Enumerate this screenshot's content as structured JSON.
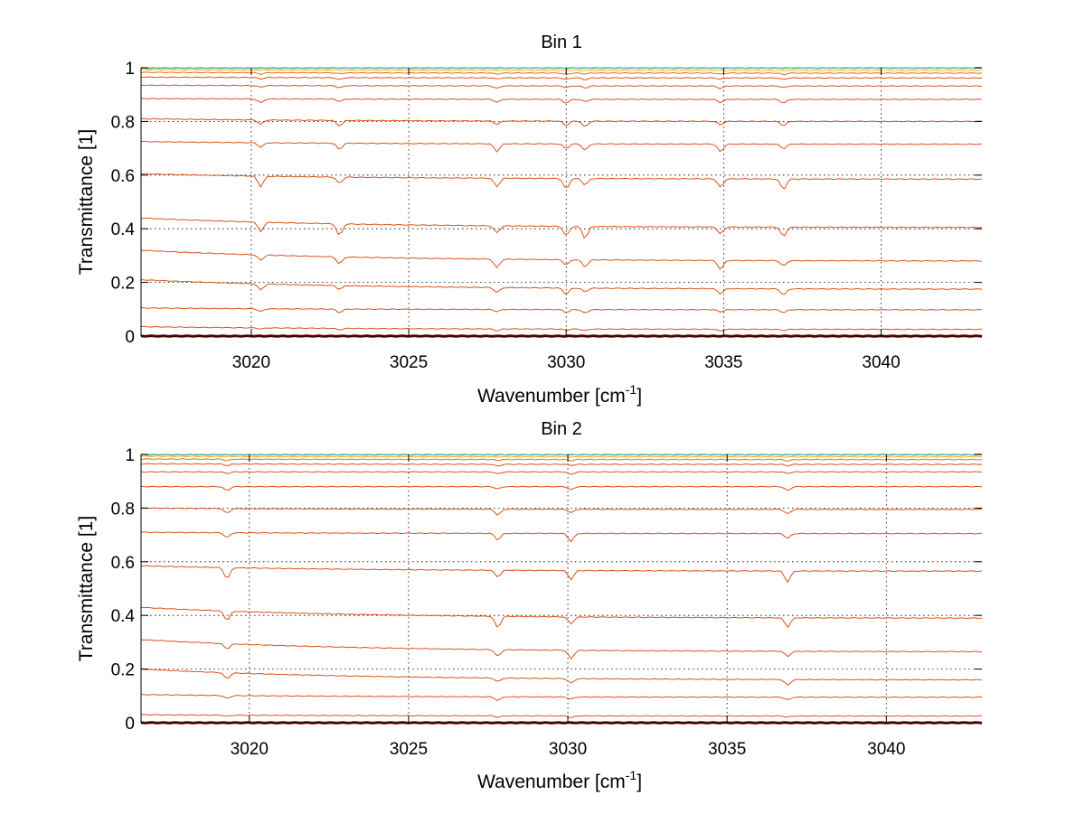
{
  "chart_data": [
    {
      "type": "line",
      "title": "Bin 1",
      "xlabel": "Wavenumber [cm",
      "xlabel_sup": "-1",
      "xlabel_close": "]",
      "ylabel": "Transmittance [1]",
      "xlim": [
        3016.5,
        3043.2
      ],
      "ylim": [
        0,
        1
      ],
      "grid": true,
      "x_ticks": [
        3020,
        3025,
        3030,
        3035,
        3040
      ],
      "y_ticks": [
        0,
        0.2,
        0.4,
        0.6,
        0.8,
        1
      ],
      "y_tick_labels": [
        "0",
        "0.2",
        "0.4",
        "0.6",
        "0.8",
        "1"
      ],
      "x_tick_labels": [
        "3020",
        "3025",
        "3030",
        "3035",
        "3040"
      ],
      "absorption_lines": [
        3020.3,
        3022.8,
        3027.8,
        3030.0,
        3030.6,
        3034.9,
        3036.9
      ],
      "series": [
        {
          "values": [
            0.035,
            0.025
          ],
          "color": "#d95319"
        },
        {
          "values": [
            0.105,
            0.098
          ],
          "color": "#d95319"
        },
        {
          "values": [
            0.21,
            0.175
          ],
          "color": "#d95319"
        },
        {
          "values": [
            0.32,
            0.28
          ],
          "color": "#d95319"
        },
        {
          "values": [
            0.44,
            0.405
          ],
          "color": "#d95319"
        },
        {
          "values": [
            0.605,
            0.585
          ],
          "color": "#d95319"
        },
        {
          "values": [
            0.725,
            0.715
          ],
          "color": "#d95319"
        },
        {
          "values": [
            0.81,
            0.8
          ],
          "color": "#d95319"
        },
        {
          "values": [
            0.885,
            0.882
          ],
          "color": "#d95319"
        },
        {
          "values": [
            0.935,
            0.932
          ],
          "color": "#d95319"
        },
        {
          "values": [
            0.965,
            0.962
          ],
          "color": "#d95319"
        },
        {
          "values": [
            0.983,
            0.98
          ],
          "color": "#e96a10"
        },
        {
          "values": [
            0.993,
            0.99
          ],
          "color": "#edb120"
        },
        {
          "values": [
            0.998,
            0.998
          ],
          "color": "#77ac30"
        },
        {
          "values": [
            1.0,
            1.0
          ],
          "color": "#4dbeee"
        },
        {
          "values": [
            0.0,
            0.0
          ],
          "color": "#7a1010"
        }
      ]
    },
    {
      "type": "line",
      "title": "Bin 2",
      "xlabel": "Wavenumber [cm",
      "xlabel_sup": "-1",
      "xlabel_close": "]",
      "ylabel": "Transmittance [1]",
      "xlim": [
        3016.6,
        3043.0
      ],
      "ylim": [
        0,
        1
      ],
      "grid": true,
      "x_ticks": [
        3020,
        3025,
        3030,
        3035,
        3040
      ],
      "y_ticks": [
        0,
        0.2,
        0.4,
        0.6,
        0.8,
        1
      ],
      "y_tick_labels": [
        "0",
        "0.2",
        "0.4",
        "0.6",
        "0.8",
        "1"
      ],
      "x_tick_labels": [
        "3020",
        "3025",
        "3030",
        "3035",
        "3040"
      ],
      "absorption_lines": [
        3019.3,
        3027.8,
        3030.1,
        3036.9
      ],
      "series": [
        {
          "values": [
            0.03,
            0.025
          ],
          "color": "#d95319"
        },
        {
          "values": [
            0.105,
            0.095
          ],
          "color": "#d95319"
        },
        {
          "values": [
            0.2,
            0.16
          ],
          "color": "#d95319"
        },
        {
          "values": [
            0.31,
            0.265
          ],
          "color": "#d95319"
        },
        {
          "values": [
            0.43,
            0.39
          ],
          "color": "#d95319"
        },
        {
          "values": [
            0.585,
            0.565
          ],
          "color": "#d95319"
        },
        {
          "values": [
            0.71,
            0.705
          ],
          "color": "#d95319"
        },
        {
          "values": [
            0.8,
            0.795
          ],
          "color": "#d95319"
        },
        {
          "values": [
            0.88,
            0.88
          ],
          "color": "#d95319"
        },
        {
          "values": [
            0.935,
            0.935
          ],
          "color": "#d95319"
        },
        {
          "values": [
            0.965,
            0.963
          ],
          "color": "#d95319"
        },
        {
          "values": [
            0.983,
            0.981
          ],
          "color": "#e96a10"
        },
        {
          "values": [
            0.993,
            0.991
          ],
          "color": "#edb120"
        },
        {
          "values": [
            0.998,
            0.998
          ],
          "color": "#77ac30"
        },
        {
          "values": [
            1.0,
            1.0
          ],
          "color": "#4dbeee"
        },
        {
          "values": [
            0.0,
            0.0
          ],
          "color": "#7a1010"
        }
      ]
    }
  ]
}
